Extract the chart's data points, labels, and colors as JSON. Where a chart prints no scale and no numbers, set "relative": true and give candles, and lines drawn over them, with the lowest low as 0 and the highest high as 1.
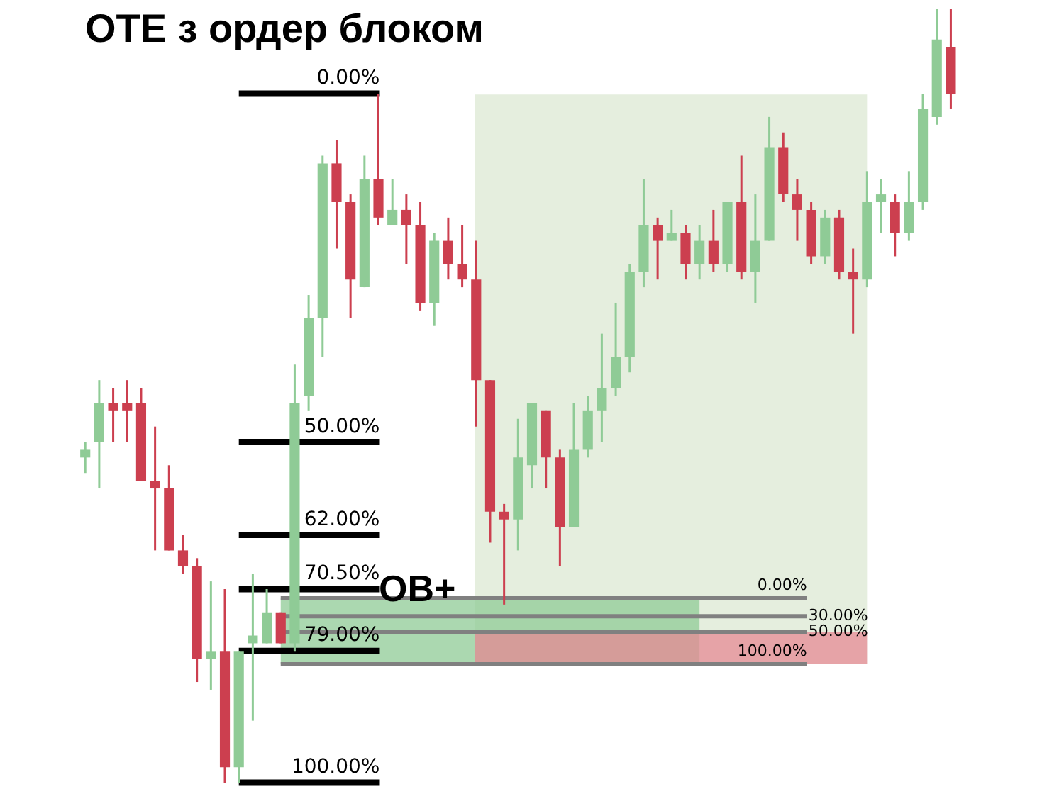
{
  "chart_data": {
    "type": "candlestick",
    "title": "OTE з ордер блоком",
    "relative": true,
    "categories": [
      null,
      null,
      null,
      null,
      null,
      null,
      null,
      null,
      null,
      null,
      null,
      null,
      null,
      null,
      null,
      null,
      null,
      null,
      null,
      null,
      null,
      null,
      null,
      null,
      null,
      null,
      null,
      null,
      null,
      null,
      null,
      null,
      null,
      null,
      null,
      null,
      null,
      null,
      null,
      null,
      null,
      null,
      null,
      null,
      null,
      null,
      null,
      null,
      null,
      null,
      null,
      null,
      null,
      null,
      null,
      null,
      null,
      null,
      null,
      null,
      null,
      null,
      null
    ],
    "colors": [
      "#8fcb96",
      "#8fcb96",
      "#cc3f4f",
      "#cc3f4f",
      "#cc3f4f",
      "#cc3f4f",
      "#cc3f4f",
      "#cc3f4f",
      "#cc3f4f",
      "#8fcb96",
      "#cc3f4f",
      "#8fcb96",
      "#8fcb96",
      "#8fcb96",
      "#cc3f4f",
      "#8fcb96",
      "#8fcb96",
      "#8fcb96",
      "#cc3f4f",
      "#cc3f4f",
      "#8fcb96",
      "#cc3f4f",
      "#8fcb96",
      "#cc3f4f",
      "#cc3f4f",
      "#8fcb96",
      "#cc3f4f",
      "#cc3f4f",
      "#cc3f4f",
      "#cc3f4f",
      "#cc3f4f",
      "#8fcb96",
      "#8fcb96",
      "#cc3f4f",
      "#cc3f4f",
      "#8fcb96",
      "#8fcb96",
      "#8fcb96",
      "#8fcb96",
      "#8fcb96",
      "#8fcb96",
      "#cc3f4f",
      "#8fcb96",
      "#cc3f4f",
      "#8fcb96",
      "#cc3f4f",
      "#8fcb96",
      "#cc3f4f",
      "#8fcb96",
      "#8fcb96",
      "#cc3f4f",
      "#cc3f4f",
      "#cc3f4f",
      "#8fcb96",
      "#cc3f4f",
      "#cc3f4f",
      "#8fcb96",
      "#8fcb96",
      "#cc3f4f",
      "#8fcb96",
      "#8fcb96",
      "#8fcb96",
      "#cc3f4f"
    ],
    "ohlc": [
      [
        0.42,
        0.44,
        0.4,
        0.43
      ],
      [
        0.44,
        0.52,
        0.38,
        0.49
      ],
      [
        0.49,
        0.51,
        0.44,
        0.48
      ],
      [
        0.49,
        0.52,
        0.44,
        0.48
      ],
      [
        0.49,
        0.51,
        0.39,
        0.39
      ],
      [
        0.39,
        0.46,
        0.3,
        0.38
      ],
      [
        0.38,
        0.41,
        0.3,
        0.3
      ],
      [
        0.3,
        0.32,
        0.27,
        0.28
      ],
      [
        0.28,
        0.29,
        0.13,
        0.16
      ],
      [
        0.16,
        0.26,
        0.12,
        0.17
      ],
      [
        0.17,
        0.25,
        0.0,
        0.02
      ],
      [
        0.02,
        0.17,
        0.0,
        0.17
      ],
      [
        0.18,
        0.27,
        0.08,
        0.19
      ],
      [
        0.18,
        0.25,
        0.18,
        0.22
      ],
      [
        0.22,
        0.22,
        0.18,
        0.18
      ],
      [
        0.18,
        0.54,
        0.17,
        0.49
      ],
      [
        0.5,
        0.63,
        0.48,
        0.6
      ],
      [
        0.6,
        0.81,
        0.55,
        0.8
      ],
      [
        0.8,
        0.83,
        0.69,
        0.75
      ],
      [
        0.75,
        0.76,
        0.6,
        0.65
      ],
      [
        0.64,
        0.81,
        0.64,
        0.78
      ],
      [
        0.78,
        0.89,
        0.72,
        0.73
      ],
      [
        0.72,
        0.78,
        0.72,
        0.74
      ],
      [
        0.74,
        0.76,
        0.67,
        0.72
      ],
      [
        0.72,
        0.75,
        0.61,
        0.62
      ],
      [
        0.62,
        0.71,
        0.59,
        0.7
      ],
      [
        0.7,
        0.73,
        0.65,
        0.67
      ],
      [
        0.67,
        0.72,
        0.64,
        0.65
      ],
      [
        0.65,
        0.7,
        0.46,
        0.52
      ],
      [
        0.52,
        0.52,
        0.31,
        0.35
      ],
      [
        0.35,
        0.36,
        0.23,
        0.34
      ],
      [
        0.34,
        0.47,
        0.3,
        0.42
      ],
      [
        0.41,
        0.49,
        0.38,
        0.49
      ],
      [
        0.48,
        0.48,
        0.38,
        0.42
      ],
      [
        0.42,
        0.43,
        0.28,
        0.33
      ],
      [
        0.33,
        0.49,
        0.33,
        0.43
      ],
      [
        0.43,
        0.5,
        0.42,
        0.48
      ],
      [
        0.48,
        0.58,
        0.44,
        0.51
      ],
      [
        0.51,
        0.62,
        0.5,
        0.55
      ],
      [
        0.55,
        0.67,
        0.53,
        0.66
      ],
      [
        0.66,
        0.78,
        0.64,
        0.72
      ],
      [
        0.72,
        0.73,
        0.65,
        0.7
      ],
      [
        0.7,
        0.74,
        0.7,
        0.71
      ],
      [
        0.71,
        0.72,
        0.65,
        0.67
      ],
      [
        0.67,
        0.72,
        0.65,
        0.7
      ],
      [
        0.7,
        0.74,
        0.66,
        0.67
      ],
      [
        0.67,
        0.75,
        0.66,
        0.75
      ],
      [
        0.75,
        0.81,
        0.65,
        0.66
      ],
      [
        0.66,
        0.76,
        0.62,
        0.7
      ],
      [
        0.7,
        0.86,
        0.7,
        0.82
      ],
      [
        0.82,
        0.84,
        0.75,
        0.76
      ],
      [
        0.76,
        0.78,
        0.7,
        0.74
      ],
      [
        0.74,
        0.75,
        0.67,
        0.68
      ],
      [
        0.68,
        0.74,
        0.67,
        0.73
      ],
      [
        0.73,
        0.74,
        0.65,
        0.66
      ],
      [
        0.66,
        0.69,
        0.58,
        0.65
      ],
      [
        0.65,
        0.79,
        0.64,
        0.75
      ],
      [
        0.75,
        0.78,
        0.71,
        0.76
      ],
      [
        0.75,
        0.76,
        0.68,
        0.71
      ],
      [
        0.71,
        0.79,
        0.7,
        0.75
      ],
      [
        0.75,
        0.89,
        0.74,
        0.87
      ],
      [
        0.86,
        1.0,
        0.85,
        0.96
      ],
      [
        0.95,
        1.0,
        0.87,
        0.89
      ]
    ],
    "bands": [
      {
        "axis": "y",
        "from": 0.153,
        "to": 0.889,
        "color": "#dce8d3"
      },
      {
        "axis": "y",
        "from": 0.153,
        "to": 0.238,
        "color": "#8fcb96"
      },
      {
        "axis": "y",
        "from": 0.153,
        "to": 0.195,
        "color": "#e58a94"
      }
    ],
    "ref_lines": [
      {
        "axis": "y",
        "value": 0.89,
        "color": "#000000"
      },
      {
        "axis": "y",
        "value": 0.44,
        "color": "#000000"
      },
      {
        "axis": "y",
        "value": 0.32,
        "color": "#000000"
      },
      {
        "axis": "y",
        "value": 0.25,
        "color": "#000000"
      },
      {
        "axis": "y",
        "value": 0.17,
        "color": "#000000"
      },
      {
        "axis": "y",
        "value": 0.0,
        "color": "#000000"
      },
      {
        "axis": "y",
        "value": 0.238,
        "color": "#808080"
      },
      {
        "axis": "y",
        "value": 0.215,
        "color": "#808080"
      },
      {
        "axis": "y",
        "value": 0.195,
        "color": "#808080"
      },
      {
        "axis": "y",
        "value": 0.153,
        "color": "#808080"
      }
    ],
    "annotations": [
      {
        "text": "0.00%",
        "y": 0.89
      },
      {
        "text": "50.00%",
        "y": 0.44
      },
      {
        "text": "62.00%",
        "y": 0.32
      },
      {
        "text": "70.50%",
        "y": 0.25
      },
      {
        "text": "79.00%",
        "y": 0.17
      },
      {
        "text": "100.00%",
        "y": 0.0
      },
      {
        "text": "0.00%",
        "y": 0.238
      },
      "30.00%",
      "50.00%",
      {
        "text": "100.00%",
        "y": 0.153
      },
      "OB+"
    ]
  }
}
